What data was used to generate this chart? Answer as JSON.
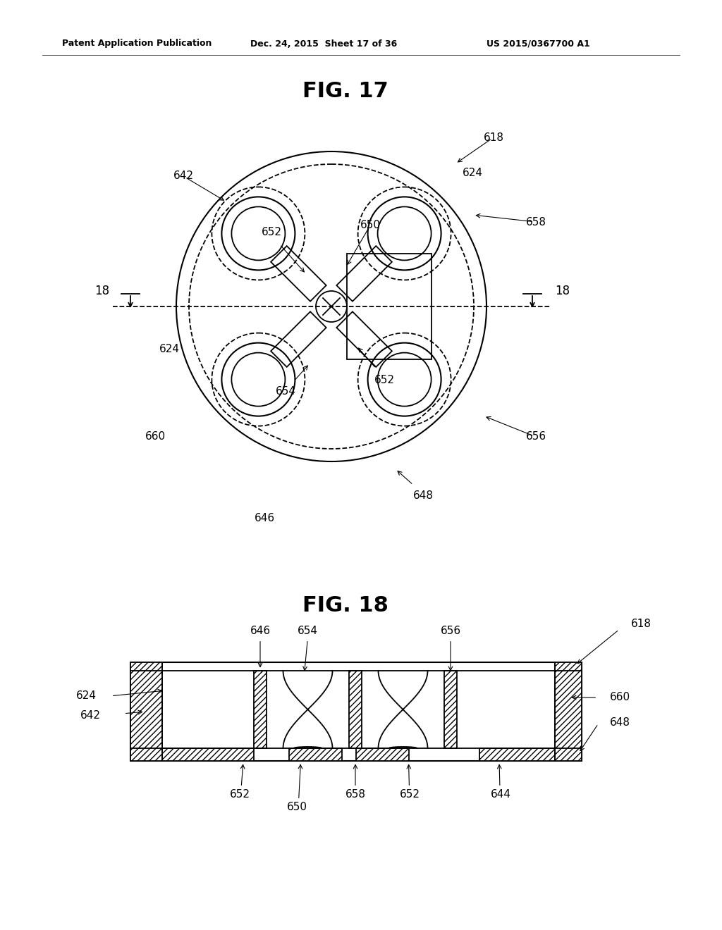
{
  "bg_color": "#ffffff",
  "header_text": "Patent Application Publication",
  "header_date": "Dec. 24, 2015  Sheet 17 of 36",
  "header_patent": "US 2015/0367700 A1",
  "fig17_title": "FIG. 17",
  "fig18_title": "FIG. 18",
  "lc": "#000000"
}
